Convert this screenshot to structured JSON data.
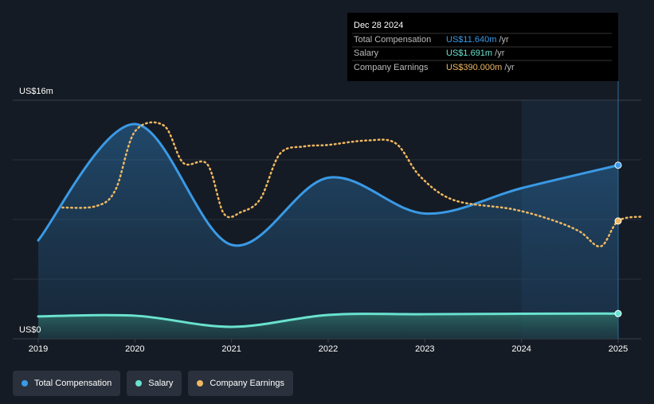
{
  "chart_data": {
    "type": "area",
    "y_axis": {
      "top_label": "US$16m",
      "bottom_label": "US$0",
      "ylim": [
        0,
        16
      ]
    },
    "x_ticks": [
      "2019",
      "2020",
      "2021",
      "2022",
      "2023",
      "2024",
      "2025"
    ],
    "xlim": [
      2019,
      2025.25
    ],
    "series": [
      {
        "name": "Total Compensation",
        "color": "#3a9ae6",
        "points": [
          [
            2019,
            6.6
          ],
          [
            2020,
            14.4
          ],
          [
            2021,
            6.3
          ],
          [
            2022,
            10.8
          ],
          [
            2023,
            8.4
          ],
          [
            2024,
            10.1
          ],
          [
            2025,
            11.64
          ]
        ]
      },
      {
        "name": "Salary",
        "color": "#6ae2cf",
        "points": [
          [
            2019,
            1.5
          ],
          [
            2020,
            1.55
          ],
          [
            2021,
            0.8
          ],
          [
            2022,
            1.6
          ],
          [
            2023,
            1.65
          ],
          [
            2024,
            1.68
          ],
          [
            2025,
            1.691
          ]
        ]
      },
      {
        "name": "Company Earnings",
        "color": "#f0b860",
        "points": [
          [
            2019.25,
            8.8
          ],
          [
            2019.6,
            8.9
          ],
          [
            2019.8,
            10.0
          ],
          [
            2020.0,
            13.9
          ],
          [
            2020.3,
            14.3
          ],
          [
            2020.5,
            11.8
          ],
          [
            2020.75,
            11.7
          ],
          [
            2020.92,
            8.4
          ],
          [
            2021.1,
            8.5
          ],
          [
            2021.3,
            9.4
          ],
          [
            2021.5,
            12.4
          ],
          [
            2021.75,
            12.9
          ],
          [
            2022.0,
            13.0
          ],
          [
            2022.4,
            13.3
          ],
          [
            2022.7,
            13.1
          ],
          [
            2022.95,
            10.9
          ],
          [
            2023.3,
            9.3
          ],
          [
            2023.9,
            8.7
          ],
          [
            2024.3,
            8.0
          ],
          [
            2024.6,
            7.2
          ],
          [
            2024.82,
            6.2
          ],
          [
            2025.0,
            7.9
          ],
          [
            2025.25,
            8.2
          ]
        ]
      }
    ],
    "forecast_shading_from": 2024,
    "grid": true,
    "legend_position": "bottom-left"
  },
  "tooltip": {
    "date": "Dec 28 2024",
    "rows": [
      {
        "label": "Total Compensation",
        "value": "US$11.640m",
        "unit": "/yr",
        "color": "#3a9ae6"
      },
      {
        "label": "Salary",
        "value": "US$1.691m",
        "unit": "/yr",
        "color": "#6ae2cf"
      },
      {
        "label": "Company Earnings",
        "value": "US$390.000m",
        "unit": "/yr",
        "color": "#f0b860"
      }
    ]
  },
  "legend": [
    {
      "label": "Total Compensation",
      "color": "#3a9ae6"
    },
    {
      "label": "Salary",
      "color": "#6ae2cf"
    },
    {
      "label": "Company Earnings",
      "color": "#f0b860"
    }
  ]
}
